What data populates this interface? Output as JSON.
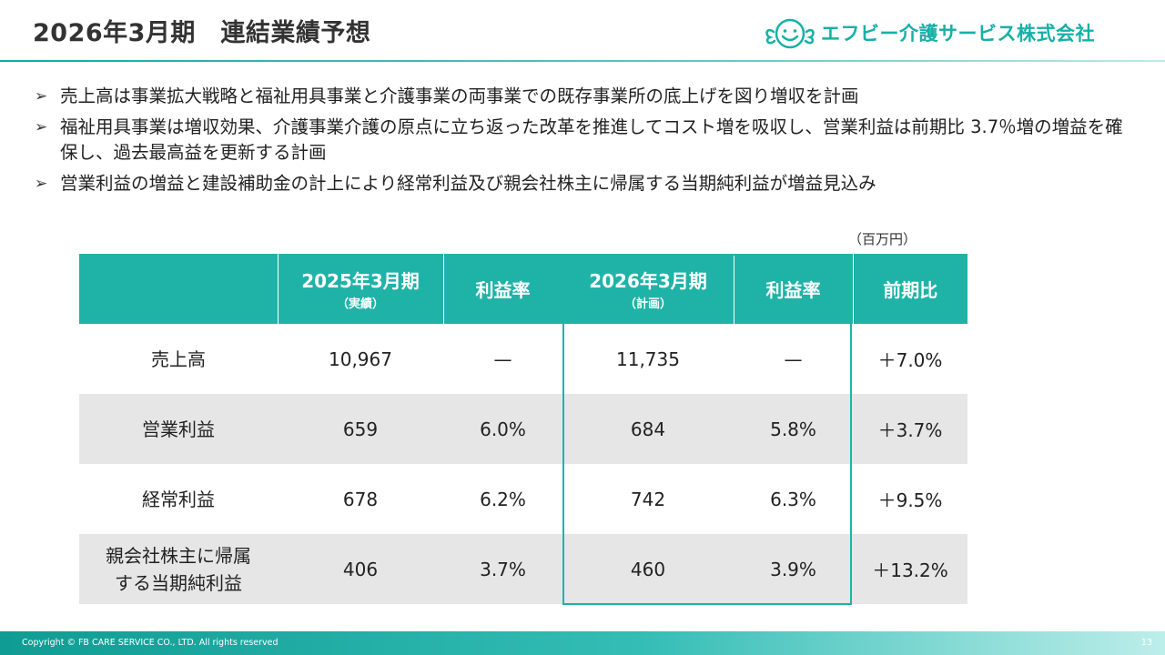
{
  "header": {
    "title": "2026年3月期　連結業績予想",
    "logo_text": "エフビー介護サービス株式会社"
  },
  "bullets": [
    "売上高は事業拡大戦略と福祉用具事業と介護事業の両事業での既存事業所の底上げを図り増収を計画",
    "福祉用具事業は増収効果、介護事業介護の原点に立ち返った改革を推進してコスト増を吸収し、営業利益は前期比 3.7％増の増益を確保し、過去最高益を更新する計画",
    "営業利益の増益と建設補助金の計上により経常利益及び親会社株主に帰属する当期純利益が増益見込み"
  ],
  "unit_note": "（百万円）",
  "table": {
    "headers": {
      "fy2025": "2025年3月期",
      "fy2025_sub": "（実績）",
      "margin1": "利益率",
      "fy2026": "2026年3月期",
      "fy2026_sub": "（計画）",
      "margin2": "利益率",
      "yoy": "前期比"
    },
    "rows": [
      {
        "label": "売上高",
        "fy2025": "10,967",
        "margin1": "—",
        "fy2026": "11,735",
        "margin2": "—",
        "yoy": "＋7.0%"
      },
      {
        "label": "営業利益",
        "fy2025": "659",
        "margin1": "6.0%",
        "fy2026": "684",
        "margin2": "5.8%",
        "yoy": "＋3.7%"
      },
      {
        "label": "経常利益",
        "fy2025": "678",
        "margin1": "6.2%",
        "fy2026": "742",
        "margin2": "6.3%",
        "yoy": "＋9.5%"
      },
      {
        "label_line1": "親会社株主に帰属",
        "label_line2": "する当期純利益",
        "fy2025": "406",
        "margin1": "3.7%",
        "fy2026": "460",
        "margin2": "3.9%",
        "yoy": "＋13.2%"
      }
    ]
  },
  "footer": {
    "copyright": "Copyright © FB CARE SERVICE CO., LTD. All rights reserved",
    "page_number": "13"
  },
  "colors": {
    "accent": "#1fb3a8",
    "logo": "#17b0a7",
    "row_alt": "#e6e6e6"
  },
  "icons": {
    "logo_mark": "winged-smiley-face-icon",
    "bullet": "arrow-bullet-icon"
  }
}
